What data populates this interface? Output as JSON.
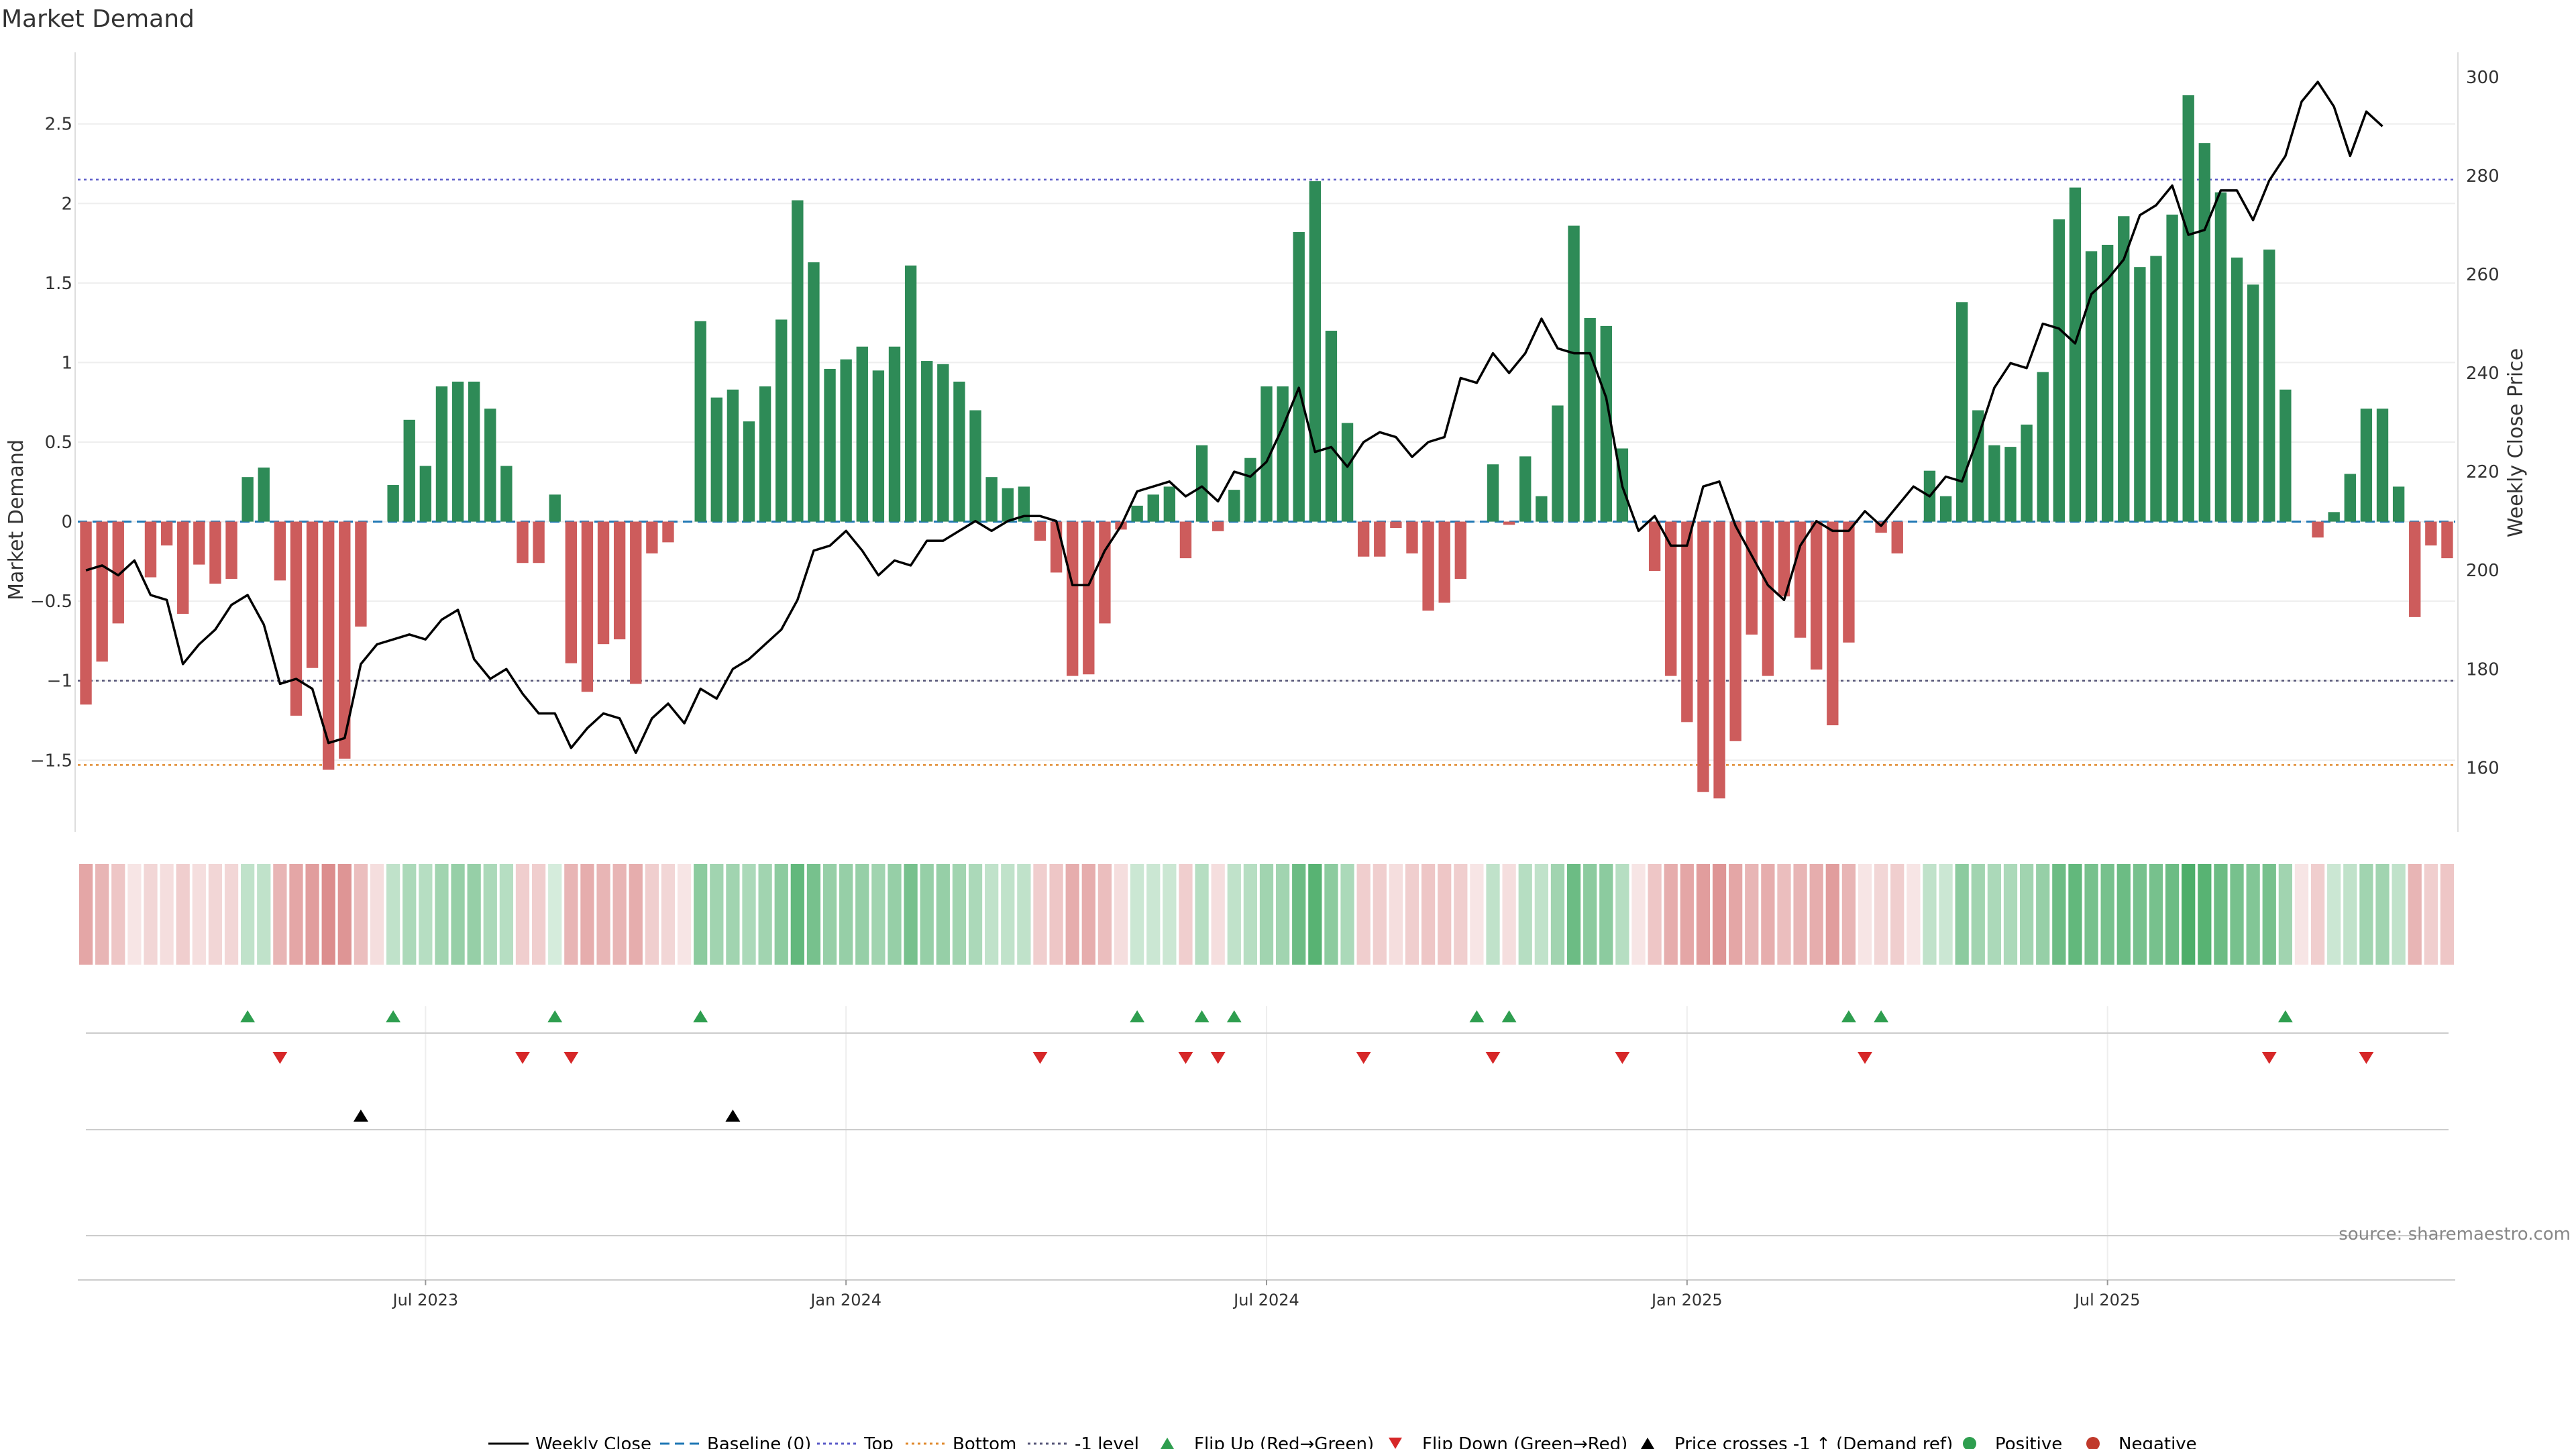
{
  "chart_data": {
    "type": "bar+line",
    "title": "Market Demand",
    "ylabel_left": "Market Demand",
    "ylabel_right": "Weekly Close Price",
    "ylim_left": [
      -1.95,
      2.95
    ],
    "ylim_right": [
      147,
      305
    ],
    "left_ticks": [
      2.5,
      2,
      1.5,
      1,
      0.5,
      0,
      -0.5,
      -1,
      -1.5
    ],
    "left_tick_labels": [
      "2.5",
      "2",
      "1.5",
      "1",
      "0.5",
      "0",
      "−0.5",
      "−1",
      "−1.5"
    ],
    "right_ticks": [
      160,
      180,
      200,
      220,
      240,
      260,
      280,
      300
    ],
    "right_tick_labels": [
      "160",
      "180",
      "200",
      "220",
      "240",
      "260",
      "280",
      "300"
    ],
    "reference_lines": {
      "top": 2.15,
      "bottom": -1.53,
      "minus_one": -1.0,
      "baseline": 0
    },
    "x_tick_labels": [
      "Jul 2023",
      "Jan 2024",
      "Jul 2024",
      "Jan 2025",
      "Jul 2025"
    ],
    "x_tick_positions": [
      21.5,
      47.5,
      73.5,
      99.5,
      125.5
    ],
    "demand": [
      -1.15,
      -0.88,
      -0.64,
      0,
      -0.35,
      -0.15,
      -0.58,
      -0.27,
      -0.39,
      -0.36,
      0.28,
      0.34,
      -0.37,
      -1.22,
      -0.92,
      -1.56,
      -1.49,
      -0.66,
      0,
      0.23,
      0.64,
      0.35,
      0.85,
      0.88,
      0.88,
      0.71,
      0.35,
      -0.26,
      -0.26,
      0.17,
      -0.89,
      -1.07,
      -0.77,
      -0.74,
      -1.02,
      -0.2,
      -0.13,
      0,
      1.26,
      0.78,
      0.83,
      0.63,
      0.85,
      1.27,
      2.02,
      1.63,
      0.96,
      1.02,
      1.1,
      0.95,
      1.1,
      1.61,
      1.01,
      0.99,
      0.88,
      0.7,
      0.28,
      0.21,
      0.22,
      -0.12,
      -0.32,
      -0.97,
      -0.96,
      -0.64,
      -0.05,
      0.1,
      0.17,
      0.22,
      -0.23,
      0.48,
      -0.06,
      0.2,
      0.4,
      0.85,
      0.85,
      1.82,
      2.14,
      1.2,
      0.62,
      -0.22,
      -0.22,
      -0.04,
      -0.2,
      -0.56,
      -0.51,
      -0.36,
      0,
      0.36,
      -0.02,
      0.41,
      0.16,
      0.73,
      1.86,
      1.28,
      1.23,
      0.46,
      0,
      -0.31,
      -0.97,
      -1.26,
      -1.7,
      -1.74,
      -1.38,
      -0.71,
      -0.97,
      -0.47,
      -0.73,
      -0.93,
      -1.28,
      -0.76,
      0,
      -0.07,
      -0.2,
      0,
      0.32,
      0.16,
      1.38,
      0.7,
      0.48,
      0.47,
      0.61,
      0.94,
      1.9,
      2.1,
      1.7,
      1.74,
      1.92,
      1.6,
      1.67,
      1.93,
      2.68,
      2.38,
      2.07,
      1.66,
      1.49,
      1.71,
      0.83,
      0,
      -0.1,
      0.06,
      0.3,
      0.71,
      0.71,
      0.22,
      -0.6,
      -0.15,
      -0.23
    ],
    "weekly_close": [
      200,
      201,
      199,
      202,
      195,
      194,
      181,
      185,
      188,
      193,
      195,
      189,
      177,
      178,
      176,
      165,
      166,
      181,
      185,
      186,
      187,
      186,
      190,
      192,
      182,
      178,
      180,
      175,
      171,
      171,
      164,
      168,
      171,
      170,
      163,
      170,
      173,
      169,
      176,
      174,
      180,
      182,
      185,
      188,
      194,
      204,
      205,
      208,
      204,
      199,
      202,
      201,
      206,
      206,
      208,
      210,
      208,
      210,
      211,
      211,
      210,
      197,
      197,
      204,
      209,
      216,
      217,
      218,
      215,
      217,
      214,
      220,
      219,
      222,
      229,
      237,
      224,
      225,
      221,
      226,
      228,
      227,
      223,
      226,
      227,
      239,
      238,
      244,
      240,
      244,
      251,
      245,
      244,
      244,
      235,
      217,
      208,
      211,
      205,
      205,
      217,
      218,
      209,
      203,
      197,
      194,
      205,
      210,
      208,
      208,
      212,
      209,
      213,
      217,
      215,
      219,
      218,
      227,
      237,
      242,
      241,
      250,
      249,
      246,
      256,
      259,
      263,
      272,
      274,
      278,
      268,
      269,
      277,
      277,
      271,
      279,
      284,
      295,
      299,
      294,
      284,
      293,
      290
    ],
    "strip_intensity": [
      0.55,
      0.45,
      0.35,
      0.2,
      0.25,
      0.2,
      0.3,
      0.2,
      0.25,
      0.25,
      0.3,
      0.3,
      0.45,
      0.55,
      0.6,
      0.7,
      0.65,
      0.4,
      0.25,
      0.3,
      0.4,
      0.35,
      0.45,
      0.5,
      0.5,
      0.4,
      0.35,
      0.3,
      0.3,
      0.2,
      0.45,
      0.5,
      0.45,
      0.45,
      0.5,
      0.3,
      0.25,
      0.2,
      0.55,
      0.45,
      0.45,
      0.4,
      0.45,
      0.55,
      0.75,
      0.65,
      0.5,
      0.5,
      0.5,
      0.45,
      0.5,
      0.65,
      0.5,
      0.5,
      0.45,
      0.4,
      0.3,
      0.3,
      0.3,
      0.3,
      0.35,
      0.5,
      0.5,
      0.4,
      0.2,
      0.25,
      0.25,
      0.25,
      0.3,
      0.35,
      0.2,
      0.3,
      0.35,
      0.45,
      0.45,
      0.7,
      0.8,
      0.55,
      0.4,
      0.3,
      0.3,
      0.2,
      0.3,
      0.35,
      0.35,
      0.3,
      0.2,
      0.3,
      0.2,
      0.35,
      0.3,
      0.45,
      0.7,
      0.55,
      0.55,
      0.35,
      0.2,
      0.35,
      0.5,
      0.55,
      0.6,
      0.65,
      0.55,
      0.45,
      0.5,
      0.4,
      0.45,
      0.5,
      0.6,
      0.45,
      0.2,
      0.25,
      0.3,
      0.2,
      0.3,
      0.25,
      0.55,
      0.45,
      0.4,
      0.4,
      0.45,
      0.5,
      0.7,
      0.75,
      0.65,
      0.65,
      0.7,
      0.65,
      0.65,
      0.7,
      0.85,
      0.8,
      0.7,
      0.65,
      0.6,
      0.65,
      0.45,
      0.2,
      0.3,
      0.25,
      0.3,
      0.45,
      0.45,
      0.3,
      0.45,
      0.3,
      0.35
    ],
    "flip_up_weeks": [
      10,
      19,
      29,
      38,
      65,
      69,
      71,
      86,
      88,
      109,
      111,
      136
    ],
    "flip_down_weeks": [
      12,
      27,
      30,
      59,
      68,
      70,
      79,
      87,
      95,
      110,
      135,
      141
    ],
    "price_cross_weeks": [
      17,
      40
    ],
    "legend": [
      "Weekly Close",
      "Baseline (0)",
      "Top",
      "Bottom",
      "-1 level",
      "Flip Up (Red→Green)",
      "Flip Down (Green→Red)",
      "Price crosses -1 ↑ (Demand ref)",
      "Positive",
      "Negative"
    ]
  },
  "colors": {
    "positive": "#2e8b57",
    "negative": "#cd5c5c",
    "flip_up": "#2e9e4f",
    "flip_down": "#d62728",
    "price_line": "#000000",
    "top_line": "#5b5bc8",
    "bottom_line": "#e08a2e",
    "minus_one_line": "#555577",
    "baseline": "#1f77b4"
  },
  "source_text": "source: sharemaestro.com"
}
